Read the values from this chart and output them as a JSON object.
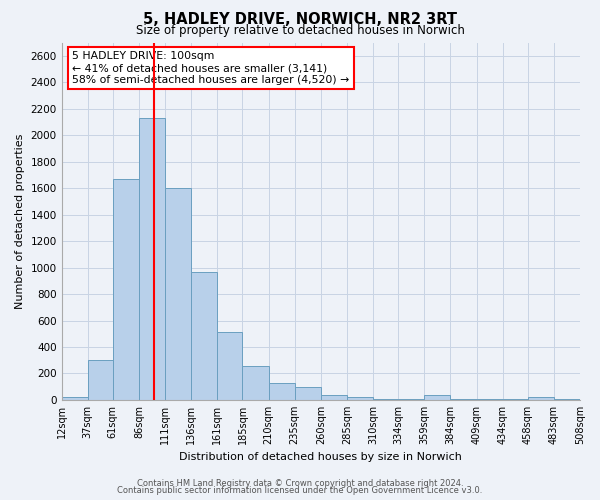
{
  "title": "5, HADLEY DRIVE, NORWICH, NR2 3RT",
  "subtitle": "Size of property relative to detached houses in Norwich",
  "xlabel": "Distribution of detached houses by size in Norwich",
  "ylabel": "Number of detached properties",
  "bar_color": "#b8d0ea",
  "bar_edge_color": "#6a9fc0",
  "grid_color": "#c8d4e4",
  "background_color": "#eef2f8",
  "red_line_x": 100,
  "annotation_title": "5 HADLEY DRIVE: 100sqm",
  "annotation_line1": "← 41% of detached houses are smaller (3,141)",
  "annotation_line2": "58% of semi-detached houses are larger (4,520) →",
  "footer1": "Contains HM Land Registry data © Crown copyright and database right 2024.",
  "footer2": "Contains public sector information licensed under the Open Government Licence v3.0.",
  "bin_edges": [
    12,
    37,
    61,
    86,
    111,
    136,
    161,
    185,
    210,
    235,
    260,
    285,
    310,
    334,
    359,
    384,
    409,
    434,
    458,
    483,
    508
  ],
  "bin_labels": [
    "12sqm",
    "37sqm",
    "61sqm",
    "86sqm",
    "111sqm",
    "136sqm",
    "161sqm",
    "185sqm",
    "210sqm",
    "235sqm",
    "260sqm",
    "285sqm",
    "310sqm",
    "334sqm",
    "359sqm",
    "384sqm",
    "409sqm",
    "434sqm",
    "458sqm",
    "483sqm",
    "508sqm"
  ],
  "bar_heights": [
    20,
    300,
    1670,
    2130,
    1600,
    970,
    510,
    255,
    125,
    100,
    40,
    25,
    5,
    5,
    40,
    10,
    5,
    5,
    20,
    5
  ],
  "ylim": [
    0,
    2700
  ],
  "yticks": [
    0,
    200,
    400,
    600,
    800,
    1000,
    1200,
    1400,
    1600,
    1800,
    2000,
    2200,
    2400,
    2600
  ]
}
